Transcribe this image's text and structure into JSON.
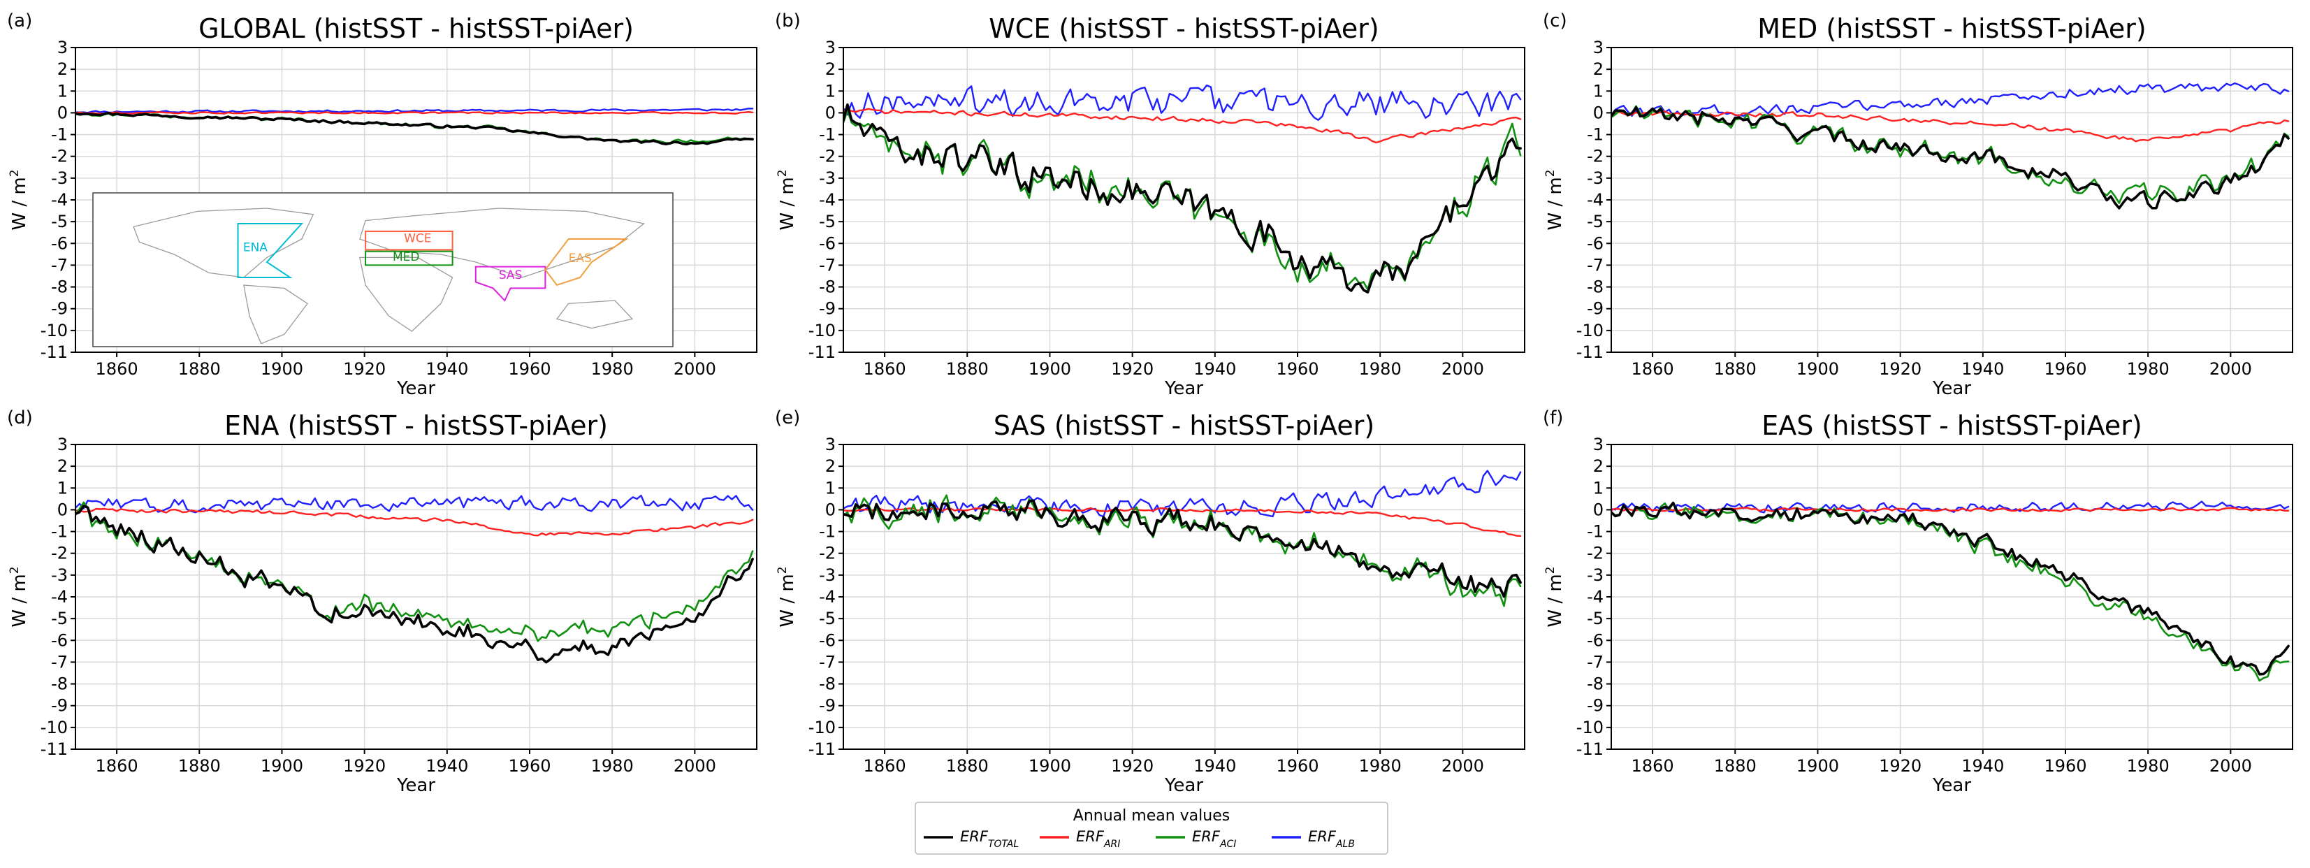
{
  "figure": {
    "legend": {
      "title": "Annual mean values",
      "entries": [
        {
          "key": "total",
          "base": "ERF",
          "sub": "TOTAL",
          "color": "#000000"
        },
        {
          "key": "ari",
          "base": "ERF",
          "sub": "ARI",
          "color": "#ff2020"
        },
        {
          "key": "aci",
          "base": "ERF",
          "sub": "ACI",
          "color": "#109010"
        },
        {
          "key": "alb",
          "base": "ERF",
          "sub": "ALB",
          "color": "#2020ff"
        }
      ]
    },
    "inset_map": {
      "regions": [
        {
          "name": "ENA",
          "color": "#00bcd4"
        },
        {
          "name": "WCE",
          "color": "#ff6040"
        },
        {
          "name": "MED",
          "color": "#109010"
        },
        {
          "name": "SAS",
          "color": "#e020e0"
        },
        {
          "name": "EAS",
          "color": "#f0a040"
        }
      ]
    }
  },
  "chart_data": [
    {
      "id": "a",
      "letter": "(a)",
      "type": "line",
      "title": "GLOBAL (histSST - histSST-piAer)",
      "xlabel": "Year",
      "ylabel": "W / m",
      "xlim": [
        1850,
        2015
      ],
      "ylim": [
        -11,
        3
      ],
      "xticks": [
        1860,
        1880,
        1900,
        1920,
        1940,
        1960,
        1980,
        2000
      ],
      "yticks": [
        3,
        2,
        1,
        0,
        -1,
        -2,
        -3,
        -4,
        -5,
        -6,
        -7,
        -8,
        -9,
        -10,
        -11
      ],
      "series_trend": {
        "total": {
          "x": [
            1850,
            1900,
            1950,
            1980,
            2000,
            2014
          ],
          "y": [
            0,
            -0.3,
            -0.7,
            -1.3,
            -1.4,
            -1.2
          ],
          "amp": 0.1
        },
        "aci": {
          "x": [
            1850,
            1900,
            1950,
            1980,
            2000,
            2014
          ],
          "y": [
            0,
            -0.3,
            -0.7,
            -1.3,
            -1.3,
            -1.2
          ],
          "amp": 0.12
        },
        "ari": {
          "x": [
            1850,
            2014
          ],
          "y": [
            0,
            0
          ],
          "amp": 0.05
        },
        "alb": {
          "x": [
            1850,
            1950,
            2014
          ],
          "y": [
            0.05,
            0.1,
            0.15
          ],
          "amp": 0.07
        }
      }
    },
    {
      "id": "b",
      "letter": "(b)",
      "type": "line",
      "title": "WCE (histSST - histSST-piAer)",
      "xlabel": "Year",
      "ylabel": "W / m",
      "xlim": [
        1850,
        2015
      ],
      "ylim": [
        -11,
        3
      ],
      "xticks": [
        1860,
        1880,
        1900,
        1920,
        1940,
        1960,
        1980,
        2000
      ],
      "yticks": [
        3,
        2,
        1,
        0,
        -1,
        -2,
        -3,
        -4,
        -5,
        -6,
        -7,
        -8,
        -9,
        -10,
        -11
      ],
      "series_trend": {
        "total": {
          "x": [
            1850,
            1860,
            1880,
            1900,
            1920,
            1940,
            1960,
            1970,
            1985,
            2000,
            2014
          ],
          "y": [
            0,
            -1.5,
            -2.2,
            -3,
            -3.5,
            -4.5,
            -6.5,
            -7.5,
            -7.5,
            -4,
            -1.5
          ],
          "amp": 1.1
        },
        "aci": {
          "x": [
            1850,
            1860,
            1880,
            1900,
            1920,
            1940,
            1960,
            1970,
            1985,
            2000,
            2014
          ],
          "y": [
            0,
            -1.5,
            -2.2,
            -3,
            -3.5,
            -4.5,
            -6.8,
            -7.5,
            -7.5,
            -4,
            -1.5
          ],
          "amp": 1.2
        },
        "ari": {
          "x": [
            1850,
            1900,
            1950,
            1970,
            1980,
            1995,
            2014
          ],
          "y": [
            0.1,
            -0.1,
            -0.4,
            -0.9,
            -1.3,
            -0.8,
            -0.3
          ],
          "amp": 0.15
        },
        "alb": {
          "x": [
            1850,
            1950,
            2014
          ],
          "y": [
            0.5,
            0.5,
            0.4
          ],
          "amp": 0.9
        }
      }
    },
    {
      "id": "c",
      "letter": "(c)",
      "type": "line",
      "title": "MED (histSST - histSST-piAer)",
      "xlabel": "Year",
      "ylabel": "W / m",
      "xlim": [
        1850,
        2015
      ],
      "ylim": [
        -11,
        3
      ],
      "xticks": [
        1860,
        1880,
        1900,
        1920,
        1940,
        1960,
        1980,
        2000
      ],
      "yticks": [
        3,
        2,
        1,
        0,
        -1,
        -2,
        -3,
        -4,
        -5,
        -6,
        -7,
        -8,
        -9,
        -10,
        -11
      ],
      "series_trend": {
        "total": {
          "x": [
            1850,
            1880,
            1900,
            1920,
            1940,
            1960,
            1975,
            1990,
            2005,
            2014
          ],
          "y": [
            0,
            -0.3,
            -1,
            -1.6,
            -2,
            -3,
            -4.2,
            -3.8,
            -2.8,
            -1
          ],
          "amp": 0.55
        },
        "aci": {
          "x": [
            1850,
            1880,
            1900,
            1920,
            1940,
            1960,
            1975,
            1990,
            2005,
            2014
          ],
          "y": [
            0,
            -0.3,
            -1,
            -1.6,
            -2,
            -3.3,
            -3.8,
            -3.6,
            -2.6,
            -1
          ],
          "amp": 0.6
        },
        "ari": {
          "x": [
            1850,
            1900,
            1950,
            1980,
            2000,
            2014
          ],
          "y": [
            0,
            -0.1,
            -0.6,
            -1.3,
            -0.8,
            -0.3
          ],
          "amp": 0.15
        },
        "alb": {
          "x": [
            1850,
            1900,
            1950,
            1970,
            2014
          ],
          "y": [
            0,
            0.2,
            0.7,
            1.1,
            1.1
          ],
          "amp": 0.35
        }
      }
    },
    {
      "id": "d",
      "letter": "(d)",
      "type": "line",
      "title": "ENA (histSST - histSST-piAer)",
      "xlabel": "Year",
      "ylabel": "W / m",
      "xlim": [
        1850,
        2015
      ],
      "ylim": [
        -11,
        3
      ],
      "xticks": [
        1860,
        1880,
        1900,
        1920,
        1940,
        1960,
        1980,
        2000
      ],
      "yticks": [
        3,
        2,
        1,
        0,
        -1,
        -2,
        -3,
        -4,
        -5,
        -6,
        -7,
        -8,
        -9,
        -10,
        -11
      ],
      "series_trend": {
        "total": {
          "x": [
            1850,
            1870,
            1890,
            1910,
            1930,
            1950,
            1965,
            1980,
            2000,
            2014
          ],
          "y": [
            0,
            -1.5,
            -3,
            -4.5,
            -5,
            -5.8,
            -6.6,
            -6.2,
            -4.8,
            -2.5
          ],
          "amp": 0.7
        },
        "aci": {
          "x": [
            1850,
            1870,
            1890,
            1910,
            1930,
            1950,
            1965,
            1980,
            2000,
            2014
          ],
          "y": [
            0,
            -1.5,
            -3,
            -4.3,
            -4.6,
            -5.3,
            -5.6,
            -5.4,
            -4.2,
            -2.2
          ],
          "amp": 0.7
        },
        "ari": {
          "x": [
            1850,
            1900,
            1940,
            1960,
            1980,
            2000,
            2014
          ],
          "y": [
            0,
            -0.1,
            -0.5,
            -1.1,
            -1.1,
            -0.8,
            -0.5
          ],
          "amp": 0.12
        },
        "alb": {
          "x": [
            1850,
            1950,
            2014
          ],
          "y": [
            0.2,
            0.3,
            0.3
          ],
          "amp": 0.45
        }
      }
    },
    {
      "id": "e",
      "letter": "(e)",
      "type": "line",
      "title": "SAS (histSST - histSST-piAer)",
      "xlabel": "Year",
      "ylabel": "W / m",
      "xlim": [
        1850,
        2015
      ],
      "ylim": [
        -11,
        3
      ],
      "xticks": [
        1860,
        1880,
        1900,
        1920,
        1940,
        1960,
        1980,
        2000
      ],
      "yticks": [
        3,
        2,
        1,
        0,
        -1,
        -2,
        -3,
        -4,
        -5,
        -6,
        -7,
        -8,
        -9,
        -10,
        -11
      ],
      "series_trend": {
        "total": {
          "x": [
            1850,
            1900,
            1940,
            1960,
            1980,
            2000,
            2014
          ],
          "y": [
            0,
            -0.2,
            -0.6,
            -1.5,
            -2.5,
            -3.3,
            -3.6
          ],
          "amp": 0.8
        },
        "aci": {
          "x": [
            1850,
            1900,
            1940,
            1960,
            1980,
            2000,
            2014
          ],
          "y": [
            0,
            -0.2,
            -0.6,
            -1.5,
            -2.5,
            -3.6,
            -3.8
          ],
          "amp": 0.85
        },
        "ari": {
          "x": [
            1850,
            1950,
            1980,
            2000,
            2014
          ],
          "y": [
            0,
            0,
            -0.2,
            -0.7,
            -1.2
          ],
          "amp": 0.1
        },
        "alb": {
          "x": [
            1850,
            1950,
            1980,
            2014
          ],
          "y": [
            0.2,
            0.1,
            0.6,
            1.6
          ],
          "amp": 0.6
        }
      }
    },
    {
      "id": "f",
      "letter": "(f)",
      "type": "line",
      "title": "EAS (histSST - histSST-piAer)",
      "xlabel": "Year",
      "ylabel": "W / m",
      "xlim": [
        1850,
        2015
      ],
      "ylim": [
        -11,
        3
      ],
      "xticks": [
        1860,
        1880,
        1900,
        1920,
        1940,
        1960,
        1980,
        2000
      ],
      "yticks": [
        3,
        2,
        1,
        0,
        -1,
        -2,
        -3,
        -4,
        -5,
        -6,
        -7,
        -8,
        -9,
        -10,
        -11
      ],
      "series_trend": {
        "total": {
          "x": [
            1850,
            1920,
            1940,
            1955,
            1970,
            1985,
            2000,
            2008,
            2014
          ],
          "y": [
            0,
            -0.3,
            -1.5,
            -2.5,
            -4,
            -5.3,
            -7,
            -7.4,
            -6.3
          ],
          "amp": 0.5
        },
        "aci": {
          "x": [
            1850,
            1920,
            1940,
            1955,
            1970,
            1985,
            2000,
            2008,
            2014
          ],
          "y": [
            0,
            -0.3,
            -1.7,
            -2.8,
            -4.3,
            -5.6,
            -7.2,
            -7.6,
            -6.8
          ],
          "amp": 0.55
        },
        "ari": {
          "x": [
            1850,
            2014
          ],
          "y": [
            0,
            0
          ],
          "amp": 0.1
        },
        "alb": {
          "x": [
            1850,
            2014
          ],
          "y": [
            0.1,
            0.2
          ],
          "amp": 0.3
        }
      }
    }
  ]
}
